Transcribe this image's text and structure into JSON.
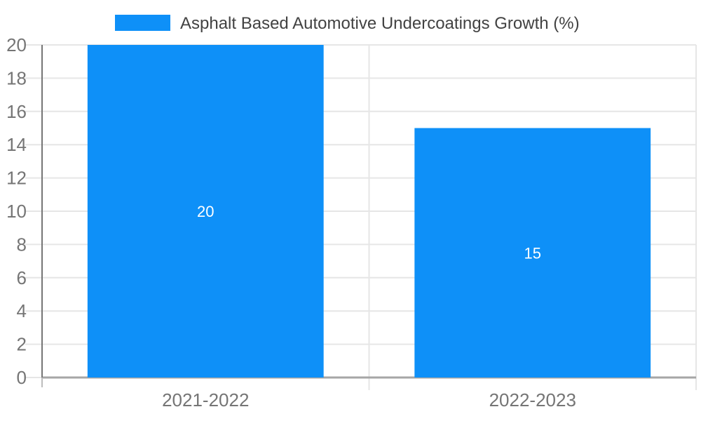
{
  "chart_data": {
    "type": "bar",
    "categories": [
      "2021-2022",
      "2022-2023"
    ],
    "series": [
      {
        "name": "Asphalt Based Automotive Undercoatings Growth (%)",
        "values": [
          20,
          15
        ],
        "color": "#0E90F8"
      }
    ],
    "value_labels": [
      "20",
      "15"
    ],
    "value_label_color": "#FFFFFF",
    "ylim": [
      0,
      20
    ],
    "yticks": [
      0,
      2,
      4,
      6,
      8,
      10,
      12,
      14,
      16,
      18,
      20
    ],
    "xlabel": "",
    "ylabel": "",
    "grid": true,
    "legend_position": "top",
    "legend_text_color": "#424242",
    "axis_label_color": "#757575",
    "gridline_color": "#E6E6E6",
    "baseline_color": "#A6A6A6",
    "axisline_color": "#757575",
    "tick_stub_color": "#BDBDBD",
    "background_color": "#FFFFFF"
  }
}
